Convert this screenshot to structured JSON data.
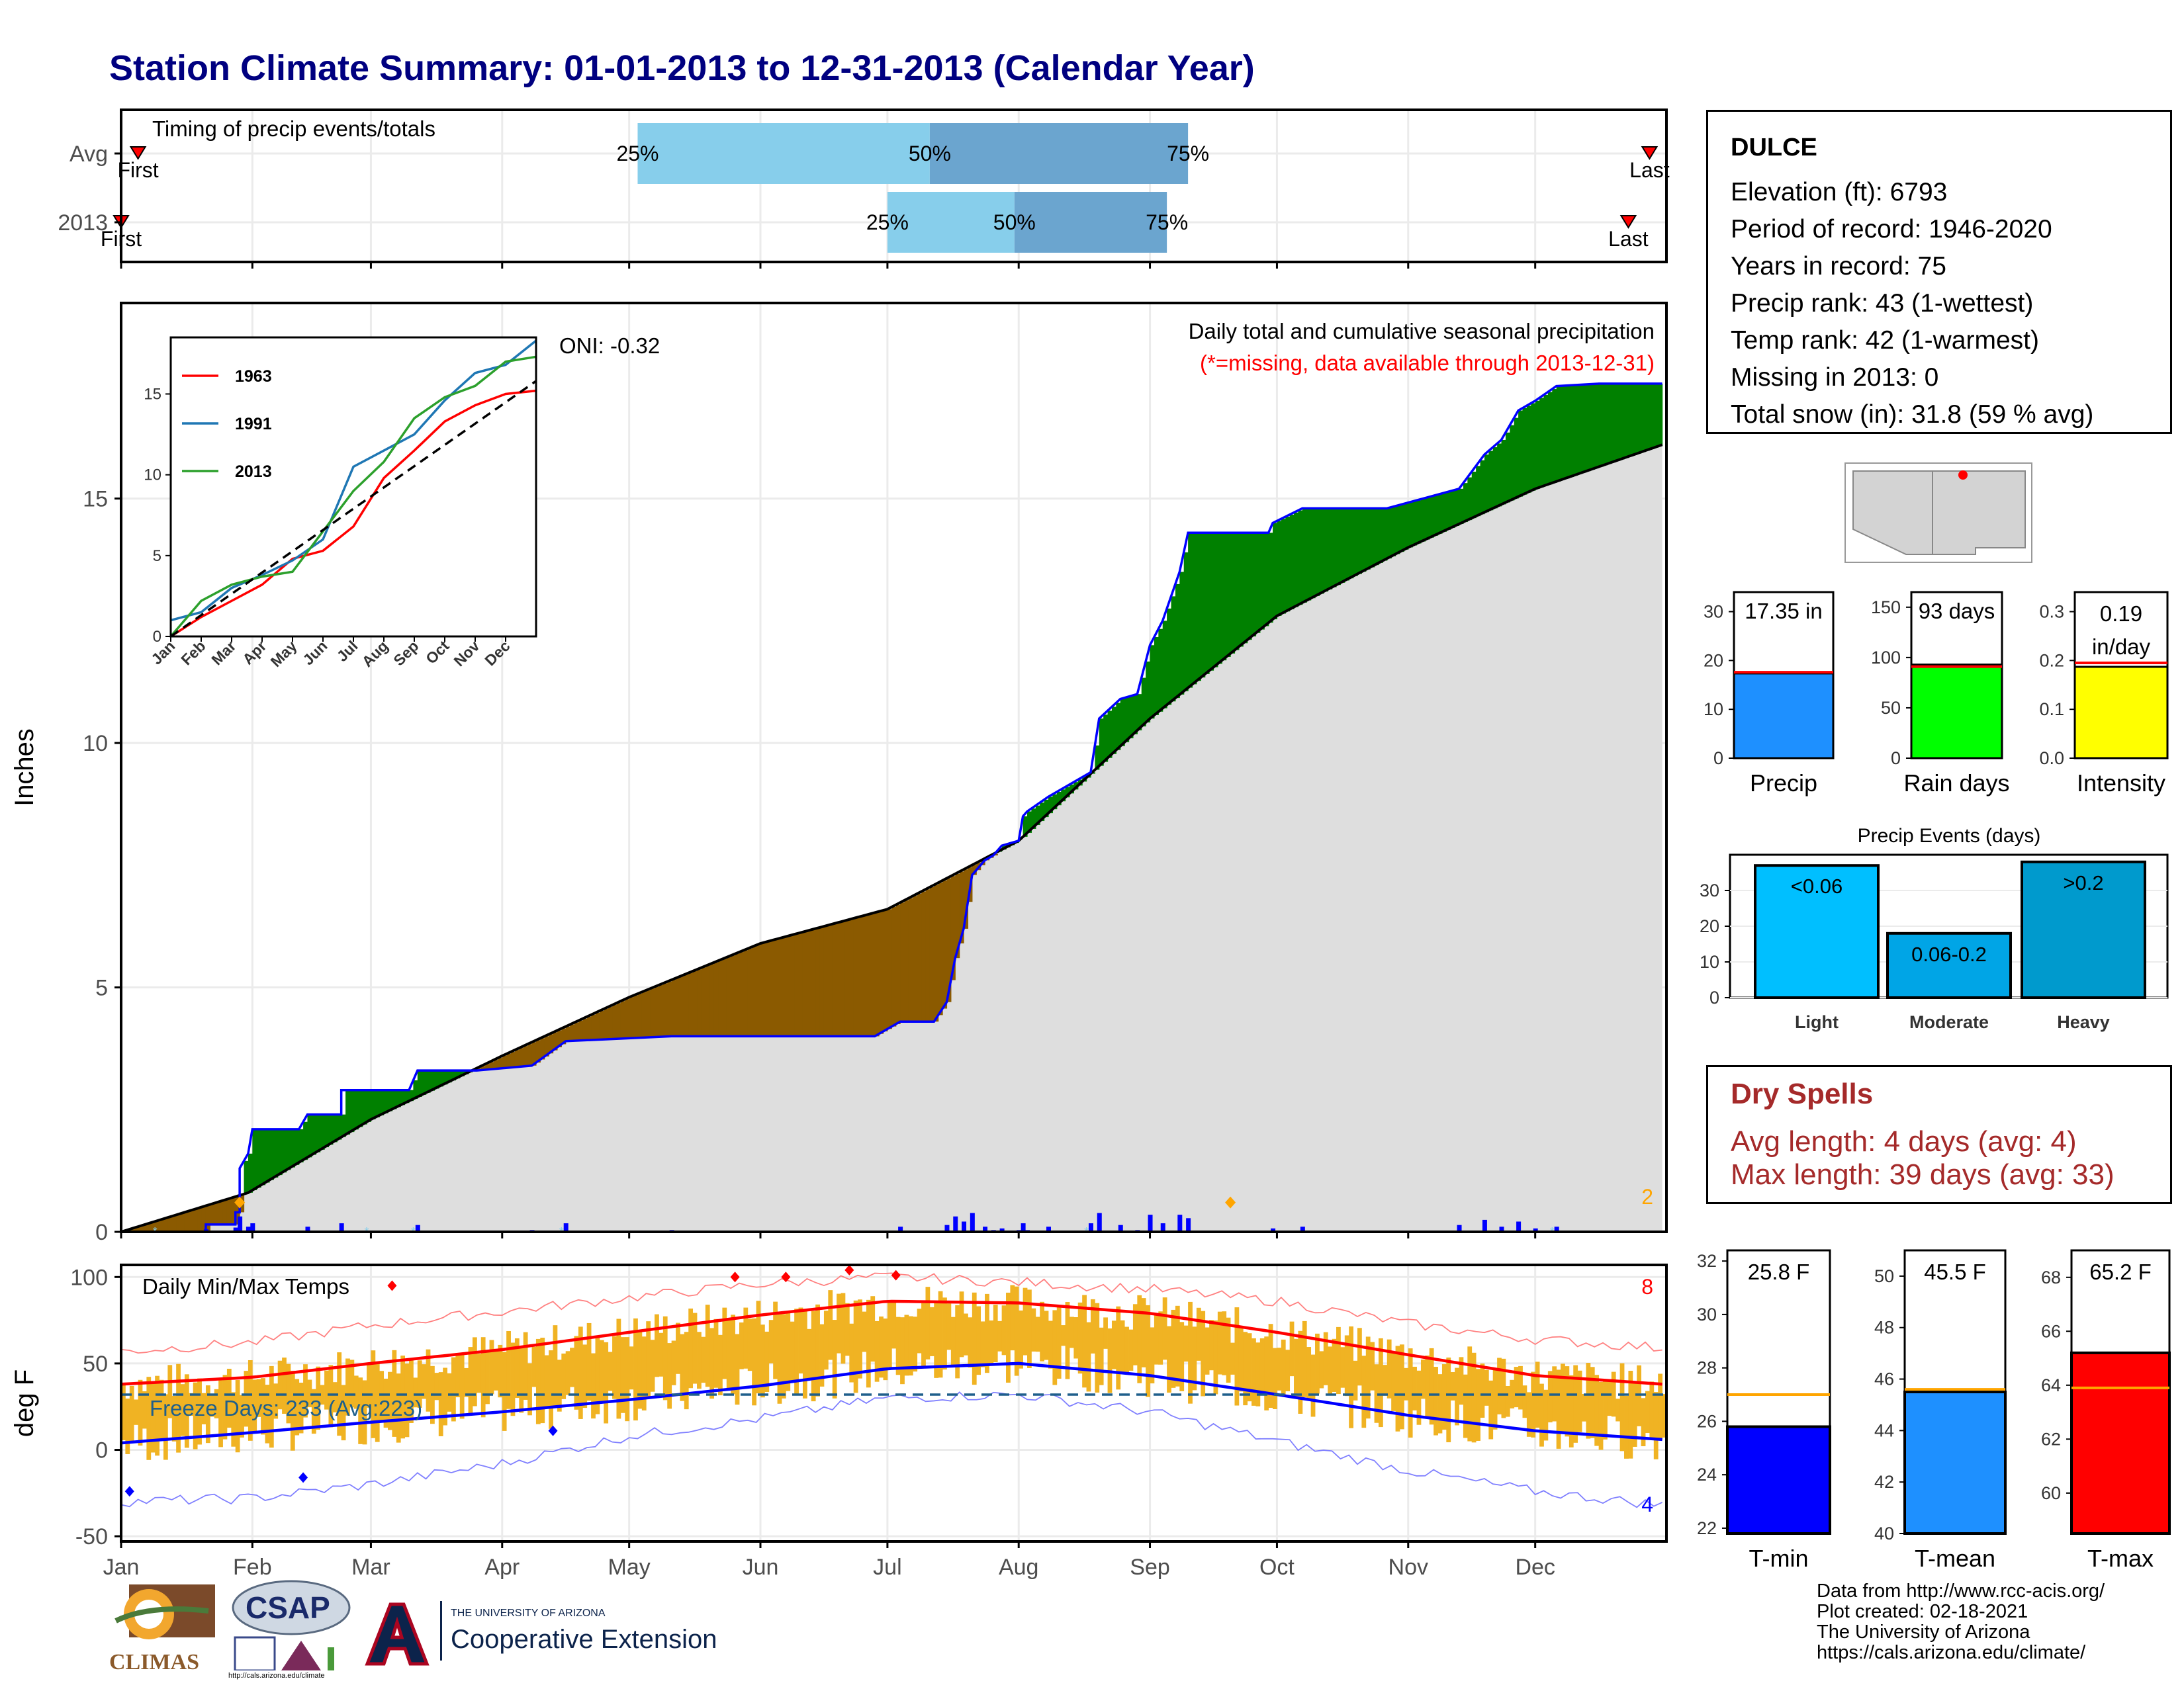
{
  "header": {
    "title": "Station Climate Summary: 01-01-2013 to 12-31-2013 (Calendar Year)"
  },
  "timing_panel": {
    "label": "Timing of precip events/totals",
    "rows": [
      {
        "name": "Avg",
        "p25": "25%",
        "p50": "50%",
        "p75": "75%",
        "first": "First",
        "last": "Last",
        "p25_day": 122,
        "p50_day": 191,
        "p75_day": 252,
        "first_day": 4,
        "last_day": 361
      },
      {
        "name": "2013",
        "p25": "25%",
        "p50": "50%",
        "p75": "75%",
        "first": "First",
        "last": "Last",
        "p25_day": 181,
        "p50_day": 211,
        "p75_day": 247,
        "first_day": 0,
        "last_day": 356
      }
    ]
  },
  "precip_panel": {
    "ylabel": "Inches",
    "yticks": [
      "0",
      "5",
      "10",
      "15"
    ],
    "caption1": "Daily total and cumulative seasonal precipitation",
    "caption2": "(*=missing, data available through 2013-12-31)",
    "oni": "ONI: -0.32",
    "corner_count": "2",
    "inset": {
      "series": [
        "1963",
        "1991",
        "2013"
      ],
      "yticks": [
        "0",
        "5",
        "10",
        "15"
      ],
      "months": [
        "Jan",
        "Feb",
        "Mar",
        "Apr",
        "May",
        "Jun",
        "Jul",
        "Aug",
        "Sep",
        "Oct",
        "Nov",
        "Dec"
      ]
    }
  },
  "temp_panel": {
    "ylabel": "deg F",
    "label": "Daily Min/Max Temps",
    "freeze_days": "Freeze Days: 233 (Avg:223)",
    "yticks": [
      "-50",
      "0",
      "50",
      "100"
    ],
    "count_hot": "8",
    "count_cold": "4"
  },
  "months": [
    "Jan",
    "Feb",
    "Mar",
    "Apr",
    "May",
    "Jun",
    "Jul",
    "Aug",
    "Sep",
    "Oct",
    "Nov",
    "Dec"
  ],
  "station": {
    "name": "DULCE",
    "lines": [
      "Elevation (ft): 6793",
      "Period of record: 1946-2020",
      "Years in record: 75",
      "Precip rank: 43 (1-wettest)",
      "Temp rank: 42 (1-warmest)",
      "Missing in 2013: 0",
      "Total snow (in): 31.8 (59 % avg)"
    ]
  },
  "summary_bars": [
    {
      "name": "Precip",
      "value_label": "17.35 in",
      "value": 17.35,
      "avg": 17.6,
      "ymax": 34,
      "ticks": [
        "0",
        "10",
        "20",
        "30"
      ],
      "color": "#1e90ff"
    },
    {
      "name": "Rain days",
      "value_label": "93 days",
      "value": 93,
      "avg": 91,
      "ymax": 165,
      "ticks": [
        "0",
        "50",
        "100",
        "150"
      ],
      "color": "#00ff00"
    },
    {
      "name": "Intensity",
      "value_label_1": "0.19",
      "value_label_2": "in/day",
      "value": 0.187,
      "avg": 0.195,
      "ymax": 0.34,
      "ticks": [
        "0.0",
        "0.1",
        "0.2",
        "0.3"
      ],
      "color": "#ffff00"
    }
  ],
  "precip_events": {
    "title": "Precip Events (days)",
    "yticks": [
      "0",
      "10",
      "20",
      "30"
    ],
    "bars": [
      {
        "name": "Light",
        "label": "<0.06",
        "value": 37,
        "color": "#00bfff"
      },
      {
        "name": "Moderate",
        "label": "0.06-0.2",
        "value": 18,
        "color": "#00a5e6"
      },
      {
        "name": "Heavy",
        "label": ">0.2",
        "value": 38,
        "color": "#009acd"
      }
    ]
  },
  "dry_spells": {
    "title": "Dry Spells",
    "avg_line": "Avg length: 4 days (avg: 4)",
    "max_line": "Max length: 39 days (avg: 33)"
  },
  "temp_bars": [
    {
      "name": "T-min",
      "value_label": "25.8 F",
      "value": 25.8,
      "avg": 27.0,
      "ymin": 21.8,
      "ymax": 32.4,
      "ticks": [
        "22",
        "24",
        "26",
        "28",
        "30",
        "32"
      ],
      "color": "#0000ff"
    },
    {
      "name": "T-mean",
      "value_label": "45.5 F",
      "value": 45.5,
      "avg": 45.6,
      "ymin": 40,
      "ymax": 51,
      "ticks": [
        "40",
        "42",
        "44",
        "46",
        "48",
        "50"
      ],
      "color": "#1e90ff"
    },
    {
      "name": "T-max",
      "value_label": "65.2 F",
      "value": 65.2,
      "avg": 63.9,
      "ymin": 58.5,
      "ymax": 69,
      "ticks": [
        "60",
        "62",
        "64",
        "66",
        "68"
      ],
      "color": "#ff0000"
    }
  ],
  "credits": {
    "lines": [
      "Data from http://www.rcc-acis.org/",
      "Plot created: 02-18-2021",
      "The University of Arizona",
      "https://cals.arizona.edu/climate/"
    ]
  },
  "logos": {
    "climas": "CLIMAS",
    "csap": "CSAP",
    "csap_url": "http://cals.arizona.edu/climate",
    "ua_line1": "THE UNIVERSITY OF ARIZONA",
    "ua_line2": "Cooperative Extension"
  },
  "chart_data": [
    {
      "type": "area",
      "title": "Daily total and cumulative seasonal precipitation",
      "ylabel": "Inches",
      "ylim": [
        0,
        19
      ],
      "x_unit": "day of year",
      "series": [
        {
          "name": "2013",
          "points": [
            [
              0,
              0
            ],
            [
              20,
              0
            ],
            [
              20,
              0.15
            ],
            [
              27,
              0.15
            ],
            [
              27,
              0.4
            ],
            [
              28,
              0.4
            ],
            [
              28,
              1.3
            ],
            [
              30,
              1.6
            ],
            [
              31,
              2.1
            ],
            [
              42,
              2.1
            ],
            [
              42,
              2.1
            ],
            [
              44,
              2.4
            ],
            [
              52,
              2.4
            ],
            [
              52,
              2.9
            ],
            [
              68,
              2.9
            ],
            [
              68,
              2.9
            ],
            [
              70,
              3.3
            ],
            [
              84,
              3.3
            ],
            [
              97,
              3.4
            ],
            [
              105,
              3.9
            ],
            [
              130,
              4.0
            ],
            [
              178,
              4.0
            ],
            [
              184,
              4.3
            ],
            [
              192,
              4.3
            ],
            [
              195,
              4.7
            ],
            [
              197,
              5.6
            ],
            [
              199,
              6.2
            ],
            [
              201,
              7.3
            ],
            [
              204,
              7.6
            ],
            [
              206,
              7.7
            ],
            [
              208,
              7.9
            ],
            [
              212,
              8.0
            ],
            [
              213,
              8.5
            ],
            [
              214,
              8.6
            ],
            [
              219,
              8.9
            ],
            [
              229,
              9.4
            ],
            [
              231,
              10.5
            ],
            [
              236,
              10.9
            ],
            [
              240,
              11.0
            ],
            [
              243,
              12.0
            ],
            [
              246,
              12.5
            ],
            [
              250,
              13.5
            ],
            [
              252,
              14.3
            ],
            [
              260,
              14.3
            ],
            [
              271,
              14.3
            ],
            [
              272,
              14.5
            ],
            [
              279,
              14.8
            ],
            [
              299,
              14.8
            ],
            [
              316,
              15.2
            ],
            [
              322,
              15.9
            ],
            [
              326,
              16.2
            ],
            [
              330,
              16.8
            ],
            [
              334,
              17.0
            ],
            [
              339,
              17.3
            ],
            [
              349,
              17.35
            ],
            [
              364,
              17.35
            ]
          ]
        },
        {
          "name": "Avg",
          "points": [
            [
              0,
              0
            ],
            [
              30,
              0.8
            ],
            [
              59,
              2.3
            ],
            [
              90,
              3.6
            ],
            [
              120,
              4.8
            ],
            [
              151,
              5.9
            ],
            [
              181,
              6.6
            ],
            [
              212,
              8.0
            ],
            [
              243,
              10.5
            ],
            [
              273,
              12.6
            ],
            [
              304,
              14.0
            ],
            [
              334,
              15.2
            ],
            [
              364,
              16.1
            ]
          ]
        }
      ]
    },
    {
      "type": "line",
      "title": "",
      "x_unit": "month",
      "ylim": [
        0,
        18.5
      ],
      "series": [
        {
          "name": "1963",
          "points": [
            [
              0,
              0
            ],
            [
              1,
              1.2
            ],
            [
              2,
              2.2
            ],
            [
              3,
              3.2
            ],
            [
              4,
              4.8
            ],
            [
              5,
              5.3
            ],
            [
              6,
              6.8
            ],
            [
              7,
              9.8
            ],
            [
              8,
              11.5
            ],
            [
              9,
              13.3
            ],
            [
              10,
              14.3
            ],
            [
              11,
              15.0
            ],
            [
              12,
              15.2
            ]
          ]
        },
        {
          "name": "1991",
          "points": [
            [
              0,
              1.0
            ],
            [
              1,
              1.5
            ],
            [
              2,
              3.0
            ],
            [
              3,
              3.8
            ],
            [
              4,
              4.7
            ],
            [
              5,
              6.0
            ],
            [
              6,
              10.5
            ],
            [
              7,
              11.5
            ],
            [
              8,
              12.5
            ],
            [
              9,
              14.6
            ],
            [
              10,
              16.3
            ],
            [
              11,
              16.8
            ],
            [
              12,
              18.3
            ]
          ]
        },
        {
          "name": "2013",
          "points": [
            [
              0,
              0
            ],
            [
              1,
              2.2
            ],
            [
              2,
              3.2
            ],
            [
              3,
              3.7
            ],
            [
              4,
              4.0
            ],
            [
              5,
              6.5
            ],
            [
              6,
              9.0
            ],
            [
              7,
              10.8
            ],
            [
              8,
              13.5
            ],
            [
              9,
              14.8
            ],
            [
              10,
              15.5
            ],
            [
              11,
              17.0
            ],
            [
              12,
              17.3
            ]
          ]
        },
        {
          "name": "Avg",
          "points": [
            [
              0,
              0
            ],
            [
              12,
              15.8
            ]
          ]
        }
      ]
    },
    {
      "type": "line",
      "title": "Daily Min/Max Temps",
      "ylabel": "deg F",
      "ylim": [
        -53,
        107
      ],
      "series": [
        {
          "name": "avg max",
          "points": [
            [
              0,
              38
            ],
            [
              31,
              42
            ],
            [
              59,
              50
            ],
            [
              90,
              58
            ],
            [
              120,
              68
            ],
            [
              151,
              78
            ],
            [
              181,
              86
            ],
            [
              212,
              85
            ],
            [
              243,
              79
            ],
            [
              273,
              68
            ],
            [
              304,
              55
            ],
            [
              334,
              43
            ],
            [
              364,
              38
            ]
          ]
        },
        {
          "name": "avg min",
          "points": [
            [
              0,
              4
            ],
            [
              31,
              10
            ],
            [
              59,
              16
            ],
            [
              90,
              22
            ],
            [
              120,
              29
            ],
            [
              151,
              37
            ],
            [
              181,
              47
            ],
            [
              212,
              50
            ],
            [
              243,
              43
            ],
            [
              273,
              32
            ],
            [
              304,
              20
            ],
            [
              334,
              11
            ],
            [
              364,
              6
            ]
          ]
        },
        {
          "name": "record max",
          "points": [
            [
              0,
              57
            ],
            [
              31,
              62
            ],
            [
              59,
              72
            ],
            [
              90,
              80
            ],
            [
              120,
              88
            ],
            [
              151,
              96
            ],
            [
              181,
              100
            ],
            [
              212,
              97
            ],
            [
              243,
              93
            ],
            [
              273,
              86
            ],
            [
              304,
              73
            ],
            [
              334,
              64
            ],
            [
              364,
              59
            ]
          ]
        },
        {
          "name": "record min",
          "points": [
            [
              0,
              -30
            ],
            [
              31,
              -28
            ],
            [
              59,
              -20
            ],
            [
              90,
              -8
            ],
            [
              120,
              8
            ],
            [
              151,
              18
            ],
            [
              181,
              30
            ],
            [
              212,
              32
            ],
            [
              243,
              22
            ],
            [
              273,
              5
            ],
            [
              304,
              -12
            ],
            [
              334,
              -24
            ],
            [
              364,
              -32
            ]
          ]
        },
        {
          "name": "freeze line",
          "points": [
            [
              0,
              32
            ],
            [
              364,
              32
            ]
          ]
        }
      ]
    },
    {
      "type": "bar",
      "title": "Precip Events (days)",
      "categories": [
        "Light",
        "Moderate",
        "Heavy"
      ],
      "values": [
        37,
        18,
        38
      ],
      "ylim": [
        0,
        40
      ]
    }
  ]
}
